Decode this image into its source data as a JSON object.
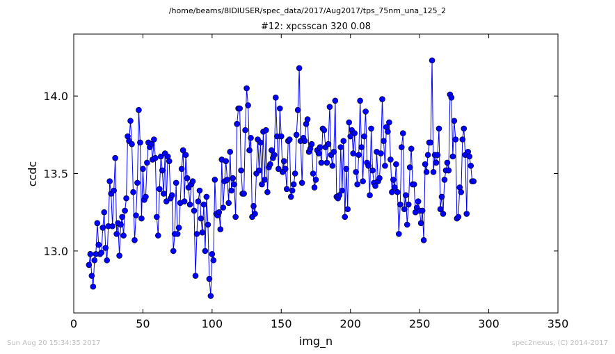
{
  "figure": {
    "suptitle": "/home/beams/8IDIUSER/spec_data/2017/Aug2017/tps_75nm_una_125_2",
    "footer_left": "Sun Aug 20 15:34:35 2017",
    "footer_right": "spec2nexus, (C) 2014-2017"
  },
  "chart_data": {
    "type": "line",
    "title": "#12: xpcsscan 320 0.08",
    "xlabel": "img_n",
    "ylabel": "ccdc",
    "xlim": [
      0,
      350
    ],
    "ylim": [
      12.6,
      14.4
    ],
    "xticks": [
      0,
      50,
      100,
      150,
      200,
      250,
      300,
      350
    ],
    "yticks": [
      13.0,
      13.5,
      14.0
    ],
    "ytick_labels": [
      "13.0",
      "13.5",
      "14.0"
    ],
    "grid": false,
    "marker": "circle",
    "color": "#0000ff",
    "series": [
      {
        "x_start": 11,
        "x_step": 1,
        "values": [
          12.91,
          12.98,
          12.84,
          12.77,
          12.94,
          12.98,
          13.18,
          13.04,
          12.98,
          12.99,
          13.15,
          13.25,
          13.02,
          12.94,
          13.16,
          13.45,
          13.37,
          13.16,
          13.39,
          13.6,
          13.11,
          13.18,
          12.97,
          13.17,
          13.22,
          13.1,
          13.26,
          13.34,
          13.74,
          13.71,
          13.84,
          13.69,
          13.38,
          13.07,
          13.23,
          13.44,
          13.91,
          13.7,
          13.21,
          13.53,
          13.33,
          13.35,
          13.57,
          13.7,
          13.67,
          13.69,
          13.59,
          13.72,
          13.6,
          13.22,
          13.1,
          13.4,
          13.61,
          13.52,
          13.37,
          13.63,
          13.32,
          13.61,
          13.58,
          13.34,
          13.36,
          13.0,
          13.11,
          13.44,
          13.11,
          13.15,
          13.31,
          13.53,
          13.65,
          13.32,
          13.62,
          13.47,
          13.41,
          13.3,
          13.43,
          13.45,
          13.26,
          12.84,
          13.11,
          13.32,
          13.39,
          13.21,
          13.12,
          13.3,
          13.0,
          13.35,
          13.17,
          12.82,
          12.71,
          12.98,
          12.94,
          13.46,
          13.24,
          13.23,
          13.25,
          13.14,
          13.59,
          13.28,
          13.45,
          13.58,
          13.46,
          13.31,
          13.64,
          13.39,
          13.47,
          13.43,
          13.22,
          13.82,
          13.92,
          13.92,
          13.52,
          13.37,
          13.37,
          13.78,
          14.05,
          13.94,
          13.65,
          13.73,
          13.22,
          13.29,
          13.24,
          13.5,
          13.72,
          13.52,
          13.7,
          13.43,
          13.77,
          13.46,
          13.78,
          13.38,
          13.54,
          13.56,
          13.65,
          13.6,
          13.62,
          13.99,
          13.74,
          13.53,
          13.92,
          13.74,
          13.51,
          13.58,
          13.53,
          13.4,
          13.71,
          13.72,
          13.35,
          13.39,
          13.43,
          13.5,
          13.75,
          13.91,
          14.18,
          13.71,
          13.44,
          13.73,
          13.71,
          13.82,
          13.85,
          13.64,
          13.66,
          13.69,
          13.5,
          13.41,
          13.46,
          13.65,
          13.63,
          13.67,
          13.57,
          13.79,
          13.78,
          13.67,
          13.57,
          13.69,
          13.93,
          13.62,
          13.55,
          13.64,
          13.97,
          13.35,
          13.34,
          13.36,
          13.67,
          13.39,
          13.71,
          13.22,
          13.53,
          13.27,
          13.83,
          13.74,
          13.78,
          13.63,
          13.76,
          13.51,
          13.43,
          13.62,
          13.97,
          13.67,
          13.45,
          13.74,
          13.9,
          13.57,
          13.55,
          13.36,
          13.79,
          13.52,
          13.44,
          13.42,
          13.64,
          13.45,
          13.47,
          13.63,
          13.98,
          13.71,
          13.55,
          13.8,
          13.77,
          13.83,
          13.59,
          13.38,
          13.46,
          13.41,
          13.56,
          13.38,
          13.11,
          13.3,
          13.67,
          13.76,
          13.27,
          13.36,
          13.17,
          13.3,
          13.54,
          13.66,
          13.43,
          13.43,
          13.25,
          13.28,
          13.32,
          13.26,
          13.18,
          13.26,
          13.07,
          13.56,
          13.51,
          13.62,
          13.7,
          13.7,
          14.23,
          13.51,
          13.62,
          13.57,
          13.62,
          13.79,
          13.27,
          13.35,
          13.24,
          13.46,
          13.52,
          13.57,
          13.52,
          14.01,
          13.99,
          13.61,
          13.84,
          13.72,
          13.21,
          13.22,
          13.41,
          13.38,
          13.72,
          13.79,
          13.62,
          13.24,
          13.64,
          13.61,
          13.55,
          13.45,
          13.45
        ]
      }
    ]
  }
}
